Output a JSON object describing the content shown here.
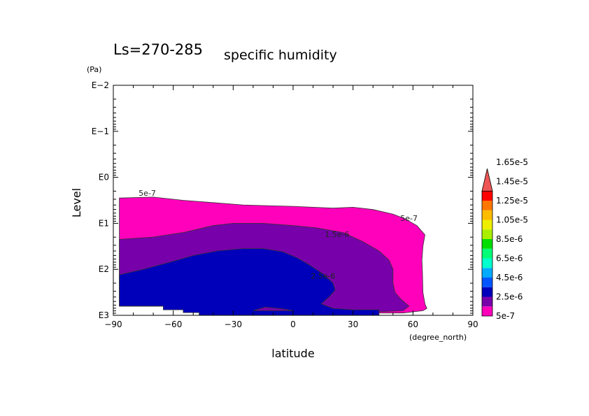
{
  "chart_data": {
    "type": "contour",
    "title": "Ls=270-285",
    "subtitle": "specific humidity",
    "xlabel": "latitude",
    "xunit": "(degree_north)",
    "ylabel": "Level",
    "yunit": "(Pa)",
    "xlim": [
      -90,
      90
    ],
    "x_ticks": [
      -90,
      -60,
      -30,
      0,
      30,
      60,
      90
    ],
    "x_tick_labels": [
      "−90",
      "−60",
      "−30",
      "0",
      "30",
      "60",
      "90"
    ],
    "ylim_pa": [
      0.01,
      1000
    ],
    "y_scale": "log",
    "y_inverted": true,
    "y_ticks_log10": [
      -2,
      -1,
      0,
      1,
      2,
      3
    ],
    "y_tick_labels": [
      "E−2",
      "E−1",
      "E0",
      "E1",
      "E2",
      "E3"
    ],
    "levels": [
      {
        "label": "5e-7",
        "color": "#ff00bb"
      },
      {
        "label": "2.5e-6",
        "color": "#7700aa"
      },
      {
        "label": "4.5e-6",
        "color": "#0000bb"
      },
      {
        "label": "6.5e-6",
        "color": "#0055ff"
      },
      {
        "label": "8.5e-6",
        "color": "#00aaff"
      },
      {
        "label": "1.05e-5",
        "color": "#00ffcc"
      },
      {
        "label": "1.25e-5",
        "color": "#00ff77"
      },
      {
        "label": "1.45e-5",
        "color": "#00dd00"
      },
      {
        "label": "1.65e-5",
        "color": "#aaee00"
      },
      {
        "label": "",
        "color": "#eeee00"
      },
      {
        "label": "",
        "color": "#ffbb00"
      },
      {
        "label": "",
        "color": "#ff7700"
      },
      {
        "label": "",
        "color": "#ff0000"
      }
    ],
    "colorbar_ticks": [
      "5e-7",
      "2.5e-6",
      "4.5e-6",
      "6.5e-6",
      "8.5e-6",
      "1.05e-5",
      "1.25e-5",
      "1.45e-5",
      "1.65e-5"
    ],
    "overflow_color": "#ee5555",
    "contour_labels": [
      {
        "text": "5e-7",
        "lat": -73,
        "log10p": 0.4
      },
      {
        "text": "5e-7",
        "lat": 58,
        "log10p": 0.95
      },
      {
        "text": "1.5e-6",
        "lat": 22,
        "log10p": 1.3
      },
      {
        "text": "2.5e-6",
        "lat": 15,
        "log10p": 2.2
      }
    ],
    "regions": [
      {
        "level": "5e-7",
        "outline": [
          [
            -87,
            0.45
          ],
          [
            -70,
            0.43
          ],
          [
            -55,
            0.5
          ],
          [
            -40,
            0.55
          ],
          [
            -25,
            0.6
          ],
          [
            -10,
            0.62
          ],
          [
            0,
            0.63
          ],
          [
            10,
            0.65
          ],
          [
            20,
            0.67
          ],
          [
            30,
            0.65
          ],
          [
            40,
            0.7
          ],
          [
            50,
            0.8
          ],
          [
            56,
            0.9
          ],
          [
            62,
            1.05
          ],
          [
            66,
            1.25
          ],
          [
            65,
            1.5
          ],
          [
            64.5,
            1.8
          ],
          [
            64.8,
            2.1
          ],
          [
            65,
            2.5
          ],
          [
            66,
            2.75
          ],
          [
            67,
            2.85
          ],
          [
            65,
            2.9
          ],
          [
            55,
            2.95
          ],
          [
            40,
            2.95
          ],
          [
            25,
            2.95
          ],
          [
            10,
            2.9
          ],
          [
            -5,
            2.9
          ],
          [
            -25,
            2.9
          ],
          [
            -45,
            3
          ],
          [
            -47,
            3
          ],
          [
            -47,
            2.94
          ],
          [
            -55,
            2.94
          ],
          [
            -55,
            2.88
          ],
          [
            -65,
            2.88
          ],
          [
            -65,
            2.8
          ],
          [
            -87,
            2.8
          ]
        ]
      },
      {
        "level": "2.5e-6",
        "outline": [
          [
            -87,
            1.35
          ],
          [
            -70,
            1.3
          ],
          [
            -55,
            1.2
          ],
          [
            -40,
            1.05
          ],
          [
            -30,
            1.0
          ],
          [
            -15,
            1.0
          ],
          [
            0,
            1.05
          ],
          [
            12,
            1.1
          ],
          [
            25,
            1.2
          ],
          [
            35,
            1.4
          ],
          [
            43,
            1.6
          ],
          [
            48,
            1.8
          ],
          [
            50,
            2.0
          ],
          [
            50,
            2.3
          ],
          [
            51,
            2.5
          ],
          [
            54,
            2.65
          ],
          [
            58,
            2.8
          ],
          [
            55,
            2.9
          ],
          [
            45,
            2.92
          ],
          [
            25,
            2.92
          ],
          [
            10,
            2.9
          ],
          [
            -5,
            2.9
          ],
          [
            -25,
            2.9
          ],
          [
            -45,
            3
          ],
          [
            -47,
            3
          ],
          [
            -47,
            2.94
          ],
          [
            -55,
            2.94
          ],
          [
            -55,
            2.88
          ],
          [
            -65,
            2.88
          ],
          [
            -65,
            2.8
          ],
          [
            -87,
            2.8
          ]
        ]
      },
      {
        "level": "4.5e-6",
        "outline": [
          [
            -87,
            2.12
          ],
          [
            -75,
            2.0
          ],
          [
            -62,
            1.85
          ],
          [
            -50,
            1.7
          ],
          [
            -38,
            1.6
          ],
          [
            -25,
            1.55
          ],
          [
            -15,
            1.55
          ],
          [
            -5,
            1.62
          ],
          [
            2,
            1.75
          ],
          [
            8,
            1.9
          ],
          [
            15,
            2.1
          ],
          [
            20,
            2.3
          ],
          [
            21,
            2.45
          ],
          [
            18,
            2.6
          ],
          [
            14,
            2.75
          ],
          [
            20,
            2.85
          ],
          [
            30,
            2.88
          ],
          [
            43,
            2.88
          ],
          [
            43,
            3
          ],
          [
            -45,
            3
          ],
          [
            -47,
            3
          ],
          [
            -47,
            2.94
          ],
          [
            -55,
            2.94
          ],
          [
            -55,
            2.88
          ],
          [
            -65,
            2.88
          ],
          [
            -65,
            2.8
          ],
          [
            -87,
            2.8
          ]
        ]
      },
      {
        "level": "2.5e-6",
        "outline": [
          [
            -20,
            2.9
          ],
          [
            -14,
            2.82
          ],
          [
            -5,
            2.86
          ],
          [
            0,
            2.9
          ]
        ]
      }
    ],
    "missing_data_color": "#ffffff",
    "grid": false,
    "legend": "colorbar-right"
  }
}
